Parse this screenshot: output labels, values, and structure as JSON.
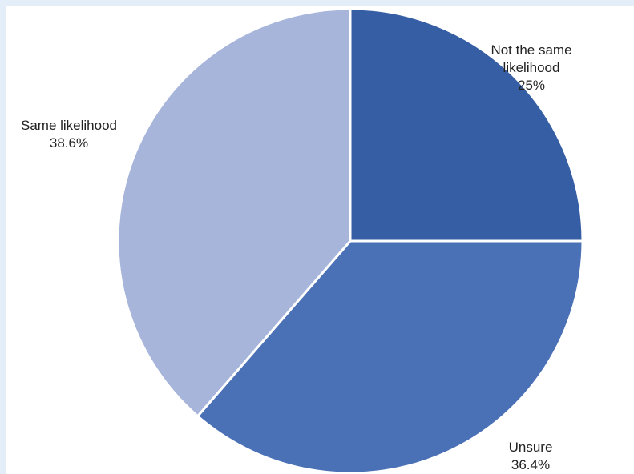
{
  "colors": {
    "page_frame": "#e4eef9",
    "panel": "#ffffff",
    "separator": "#ffffff"
  },
  "chart_data": {
    "type": "pie",
    "start_angle_deg": 0,
    "direction": "clockwise",
    "slices": [
      {
        "name": "Not the same likelihood",
        "label_lines": [
          "Not the same",
          "likelihood"
        ],
        "value": 25,
        "value_label": "25%",
        "color": "#365ea4"
      },
      {
        "name": "Unsure",
        "label_lines": [
          "Unsure"
        ],
        "value": 36.4,
        "value_label": "36.4%",
        "color": "#4a70b6"
      },
      {
        "name": "Same likelihood",
        "label_lines": [
          "Same likelihood"
        ],
        "value": 38.6,
        "value_label": "38.6%",
        "color": "#a7b5db"
      }
    ]
  }
}
